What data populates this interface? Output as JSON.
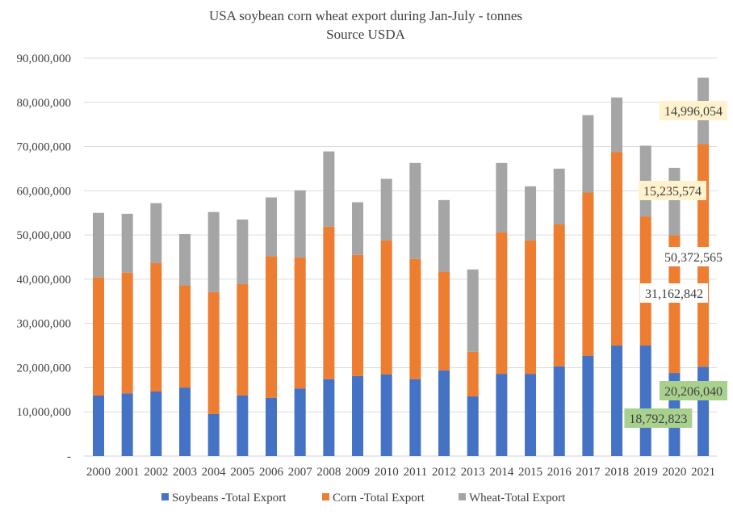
{
  "chart_data": {
    "type": "bar",
    "stacked": true,
    "title": "USA soybean corn wheat export during Jan-July - tonnes",
    "subtitle": "Source USDA",
    "xlabel": "",
    "ylabel": "",
    "ylim": [
      0,
      90000000
    ],
    "yticks": [
      "-",
      "10,000,000",
      "20,000,000",
      "30,000,000",
      "40,000,000",
      "50,000,000",
      "60,000,000",
      "70,000,000",
      "80,000,000",
      "90,000,000"
    ],
    "grid": true,
    "legend_position": "bottom",
    "categories": [
      "2000",
      "2001",
      "2002",
      "2003",
      "2004",
      "2005",
      "2006",
      "2007",
      "2008",
      "2009",
      "2010",
      "2011",
      "2012",
      "2013",
      "2014",
      "2015",
      "2016",
      "2017",
      "2018",
      "2019",
      "2020",
      "2021"
    ],
    "series": [
      {
        "name": "Soybeans -Total Export",
        "color": "#4472c4",
        "values": [
          13700000,
          14200000,
          14600000,
          15500000,
          9500000,
          13700000,
          13200000,
          15300000,
          17400000,
          18100000,
          18500000,
          17400000,
          19400000,
          13500000,
          18600000,
          18600000,
          20300000,
          22700000,
          25000000,
          25000000,
          18792823,
          20206040
        ]
      },
      {
        "name": "Corn -Total Export",
        "color": "#ed7d31",
        "values": [
          26700000,
          27300000,
          29100000,
          23100000,
          27600000,
          25200000,
          32000000,
          29600000,
          34500000,
          27400000,
          30300000,
          27200000,
          22300000,
          10100000,
          32000000,
          30200000,
          32100000,
          36900000,
          43800000,
          29200000,
          31162842,
          50372565
        ]
      },
      {
        "name": "Wheat-Total Export",
        "color": "#a5a5a5",
        "values": [
          14600000,
          13300000,
          13500000,
          11600000,
          18100000,
          14600000,
          13300000,
          15200000,
          17000000,
          11900000,
          13900000,
          21700000,
          16200000,
          18600000,
          15700000,
          12200000,
          12600000,
          17500000,
          12300000,
          16000000,
          15235574,
          14996054
        ]
      }
    ],
    "data_labels": [
      {
        "text": "18,792,823",
        "category": "2020",
        "series": "Soybeans -Total Export",
        "background": "#a9d18e"
      },
      {
        "text": "31,162,842",
        "category": "2020",
        "series": "Corn -Total Export",
        "background": "#ffffff"
      },
      {
        "text": "15,235,574",
        "category": "2020",
        "series": "Wheat-Total Export",
        "background": "#fff2cc"
      },
      {
        "text": "20,206,040",
        "category": "2021",
        "series": "Soybeans -Total Export",
        "background": "#a9d18e"
      },
      {
        "text": "50,372,565",
        "category": "2021",
        "series": "Corn -Total Export",
        "background": "#ffffff"
      },
      {
        "text": "14,996,054",
        "category": "2021",
        "series": "Wheat-Total Export",
        "background": "#fff2cc"
      }
    ]
  }
}
